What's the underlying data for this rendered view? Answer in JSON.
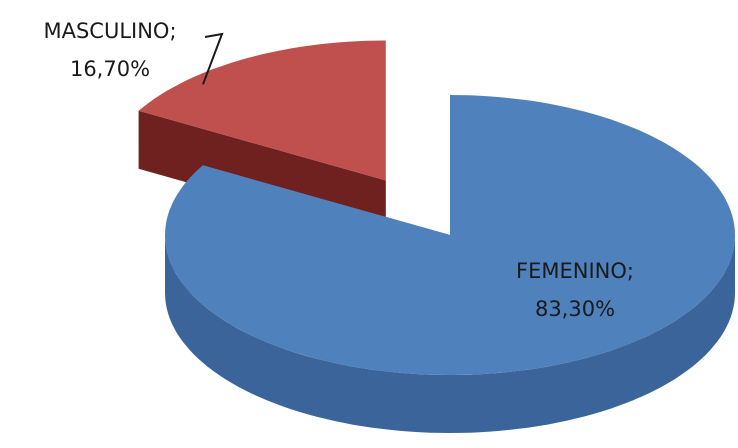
{
  "chart_data": {
    "type": "pie",
    "categories": [
      "FEMENINO;",
      "MASCULINO;"
    ],
    "values": [
      83.3,
      16.7
    ],
    "value_labels": [
      "83,30%",
      "16,70%"
    ],
    "colors": [
      "#4f81bd",
      "#c0504d"
    ],
    "side_colors": [
      "#3b659a",
      "#6e211f"
    ],
    "exploded": [
      false,
      true
    ]
  }
}
